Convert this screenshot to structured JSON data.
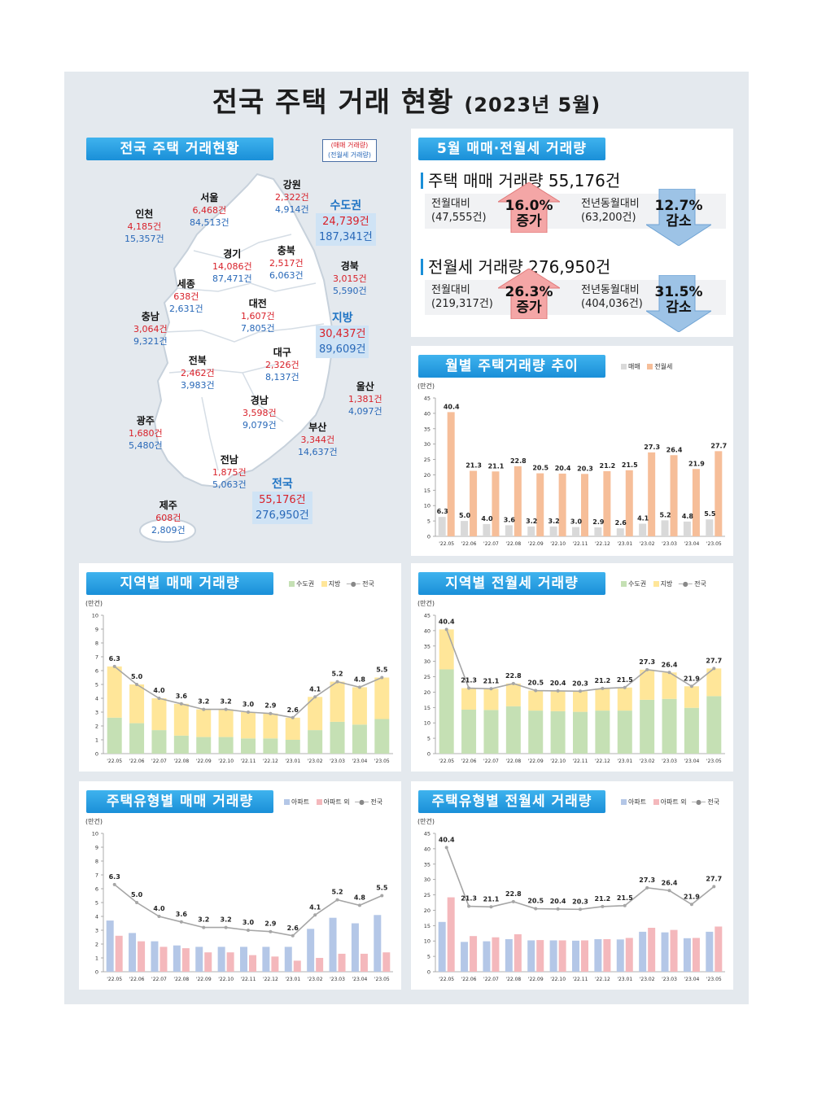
{
  "title": "전국 주택 거래 현황",
  "title_period": "(2023년 5월)",
  "map_panel": {
    "banner": "전국 주택 거래현황",
    "legend_sale": "(매매 거래량)",
    "legend_rent": "(전월세 거래량)",
    "regions": [
      {
        "name": "인천",
        "sale": "4,185건",
        "rent": "15,357건"
      },
      {
        "name": "서울",
        "sale": "6,468건",
        "rent": "84,513건"
      },
      {
        "name": "강원",
        "sale": "2,322건",
        "rent": "4,914건"
      },
      {
        "name": "경기",
        "sale": "14,086건",
        "rent": "87,471건"
      },
      {
        "name": "충북",
        "sale": "2,517건",
        "rent": "6,063건"
      },
      {
        "name": "경북",
        "sale": "3,015건",
        "rent": "5,590건"
      },
      {
        "name": "세종",
        "sale": "638건",
        "rent": "2,631건"
      },
      {
        "name": "대전",
        "sale": "1,607건",
        "rent": "7,805건"
      },
      {
        "name": "충남",
        "sale": "3,064건",
        "rent": "9,321건"
      },
      {
        "name": "대구",
        "sale": "2,326건",
        "rent": "8,137건"
      },
      {
        "name": "전북",
        "sale": "2,462건",
        "rent": "3,983건"
      },
      {
        "name": "울산",
        "sale": "1,381건",
        "rent": "4,097건"
      },
      {
        "name": "경남",
        "sale": "3,598건",
        "rent": "9,079건"
      },
      {
        "name": "광주",
        "sale": "1,680건",
        "rent": "5,480건"
      },
      {
        "name": "부산",
        "sale": "3,344건",
        "rent": "14,637건"
      },
      {
        "name": "전남",
        "sale": "1,875건",
        "rent": "5,063건"
      },
      {
        "name": "제주",
        "sale": "608건",
        "rent": "2,809건"
      }
    ],
    "totals": [
      {
        "name": "수도권",
        "sale": "24,739건",
        "rent": "187,341건"
      },
      {
        "name": "지방",
        "sale": "30,437건",
        "rent": "89,609건"
      },
      {
        "name": "전국",
        "sale": "55,176건",
        "rent": "276,950건"
      }
    ]
  },
  "summary_panel": {
    "banner": "5월 매매·전월세 거래량",
    "sale": {
      "heading": "주택 매매 거래량 55,176건",
      "mom_label": "전월대비",
      "mom_base": "(47,555건)",
      "mom_pct": "16.0%",
      "mom_dir": "증가",
      "yoy_label": "전년동월대비",
      "yoy_base": "(63,200건)",
      "yoy_pct": "12.7%",
      "yoy_dir": "감소"
    },
    "rent": {
      "heading": "전월세 거래량 276,950건",
      "mom_label": "전월대비",
      "mom_base": "(219,317건)",
      "mom_pct": "26.3%",
      "mom_dir": "증가",
      "yoy_label": "전년동월대비",
      "yoy_base": "(404,036건)",
      "yoy_pct": "31.5%",
      "yoy_dir": "감소"
    }
  },
  "colors": {
    "banner": "#1a8fd8",
    "sale_gray": "#d9d9d9",
    "rent_peach": "#f6be99",
    "metro_green": "#c5e0b4",
    "local_yellow": "#ffe699",
    "apt_blue": "#b4c7e7",
    "nonapt_pink": "#f4b8bc",
    "total_line": "#a6a6a6",
    "up_arrow": "#f4a6a6",
    "down_arrow": "#9dc3e6"
  },
  "chart_data": [
    {
      "id": "monthly",
      "banner": "월별 주택거래량 추이",
      "type": "bar",
      "unit": "(만건)",
      "categories": [
        "'22.05",
        "'22.06",
        "'22.07",
        "'22.08",
        "'22.09",
        "'22.10",
        "'22.11",
        "'22.12",
        "'23.01",
        "'23.02",
        "'23.03",
        "'23.04",
        "'23.05"
      ],
      "ylim": [
        0,
        45
      ],
      "yticks": [
        0,
        5,
        10,
        15,
        20,
        25,
        30,
        35,
        40,
        45
      ],
      "series": [
        {
          "name": "매매",
          "values": [
            6.3,
            5.0,
            4.0,
            3.6,
            3.2,
            3.2,
            3.0,
            2.9,
            2.6,
            4.1,
            5.2,
            4.8,
            5.5
          ]
        },
        {
          "name": "전월세",
          "values": [
            40.4,
            21.3,
            21.1,
            22.8,
            20.5,
            20.4,
            20.3,
            21.2,
            21.5,
            27.3,
            26.4,
            21.9,
            27.7
          ]
        }
      ]
    },
    {
      "id": "region_sale",
      "banner": "지역별 매매 거래량",
      "type": "bar",
      "unit": "(만건)",
      "categories": [
        "'22.05",
        "'22.06",
        "'22.07",
        "'22.08",
        "'22.09",
        "'22.10",
        "'22.11",
        "'22.12",
        "'23.01",
        "'23.02",
        "'23.03",
        "'23.04",
        "'23.05"
      ],
      "ylim": [
        0,
        10
      ],
      "yticks": [
        0,
        1,
        2,
        3,
        4,
        5,
        6,
        7,
        8,
        9,
        10
      ],
      "series": [
        {
          "name": "수도권",
          "values": [
            2.6,
            2.2,
            1.7,
            1.3,
            1.2,
            1.2,
            1.1,
            1.1,
            1.0,
            1.7,
            2.3,
            2.1,
            2.5
          ]
        },
        {
          "name": "지방",
          "values": [
            3.7,
            2.8,
            2.3,
            2.3,
            2.0,
            2.0,
            1.9,
            1.8,
            1.6,
            2.4,
            2.9,
            2.7,
            3.0
          ]
        }
      ],
      "line": {
        "name": "전국",
        "values": [
          6.3,
          5.0,
          4.0,
          3.6,
          3.2,
          3.2,
          3.0,
          2.9,
          2.6,
          4.1,
          5.2,
          4.8,
          5.5
        ]
      }
    },
    {
      "id": "region_rent",
      "banner": "지역별 전월세 거래량",
      "type": "bar",
      "unit": "(만건)",
      "categories": [
        "'22.05",
        "'22.06",
        "'22.07",
        "'22.08",
        "'22.09",
        "'22.10",
        "'22.11",
        "'22.12",
        "'23.01",
        "'23.02",
        "'23.03",
        "'23.04",
        "'23.05"
      ],
      "ylim": [
        0,
        45
      ],
      "yticks": [
        0,
        5,
        10,
        15,
        20,
        25,
        30,
        35,
        40,
        45
      ],
      "series": [
        {
          "name": "수도권",
          "values": [
            27.4,
            14.3,
            14.2,
            15.4,
            14.0,
            13.8,
            13.6,
            14.0,
            14.0,
            17.5,
            17.8,
            14.9,
            18.7
          ]
        },
        {
          "name": "지방",
          "values": [
            13.0,
            7.0,
            6.9,
            7.4,
            6.5,
            6.6,
            6.7,
            7.2,
            7.5,
            9.8,
            8.6,
            7.0,
            9.0
          ]
        }
      ],
      "line": {
        "name": "전국",
        "values": [
          40.4,
          21.3,
          21.1,
          22.8,
          20.5,
          20.4,
          20.3,
          21.2,
          21.5,
          27.3,
          26.4,
          21.9,
          27.7
        ]
      }
    },
    {
      "id": "type_sale",
      "banner": "주택유형별 매매 거래량",
      "type": "bar",
      "unit": "(만건)",
      "categories": [
        "'22.05",
        "'22.06",
        "'22.07",
        "'22.08",
        "'22.09",
        "'22.10",
        "'22.11",
        "'22.12",
        "'23.01",
        "'23.02",
        "'23.03",
        "'23.04",
        "'23.05"
      ],
      "ylim": [
        0,
        10
      ],
      "yticks": [
        0,
        1,
        2,
        3,
        4,
        5,
        6,
        7,
        8,
        9,
        10
      ],
      "series": [
        {
          "name": "아파트",
          "values": [
            3.7,
            2.8,
            2.2,
            1.9,
            1.8,
            1.8,
            1.8,
            1.8,
            1.8,
            3.1,
            3.9,
            3.5,
            4.1
          ]
        },
        {
          "name": "아파트 외",
          "values": [
            2.6,
            2.2,
            1.8,
            1.7,
            1.4,
            1.4,
            1.2,
            1.1,
            0.8,
            1.0,
            1.3,
            1.3,
            1.4
          ]
        }
      ],
      "line": {
        "name": "전국",
        "values": [
          6.3,
          5.0,
          4.0,
          3.6,
          3.2,
          3.2,
          3.0,
          2.9,
          2.6,
          4.1,
          5.2,
          4.8,
          5.5
        ]
      }
    },
    {
      "id": "type_rent",
      "banner": "주택유형별 전월세 거래량",
      "type": "bar",
      "unit": "(만건)",
      "categories": [
        "'22.05",
        "'22.06",
        "'22.07",
        "'22.08",
        "'22.09",
        "'22.10",
        "'22.11",
        "'22.12",
        "'23.01",
        "'23.02",
        "'23.03",
        "'23.04",
        "'23.05"
      ],
      "ylim": [
        0,
        45
      ],
      "yticks": [
        0,
        5,
        10,
        15,
        20,
        25,
        30,
        35,
        40,
        45
      ],
      "series": [
        {
          "name": "아파트",
          "values": [
            16.2,
            9.7,
            9.9,
            10.6,
            10.2,
            10.2,
            10.1,
            10.6,
            10.5,
            13.0,
            12.8,
            10.9,
            13.0
          ]
        },
        {
          "name": "아파트 외",
          "values": [
            24.2,
            11.6,
            11.2,
            12.2,
            10.3,
            10.2,
            10.2,
            10.6,
            11.0,
            14.3,
            13.6,
            11.0,
            14.7
          ]
        }
      ],
      "line": {
        "name": "전국",
        "values": [
          40.4,
          21.3,
          21.1,
          22.8,
          20.5,
          20.4,
          20.3,
          21.2,
          21.5,
          27.3,
          26.4,
          21.9,
          27.7
        ]
      }
    }
  ]
}
